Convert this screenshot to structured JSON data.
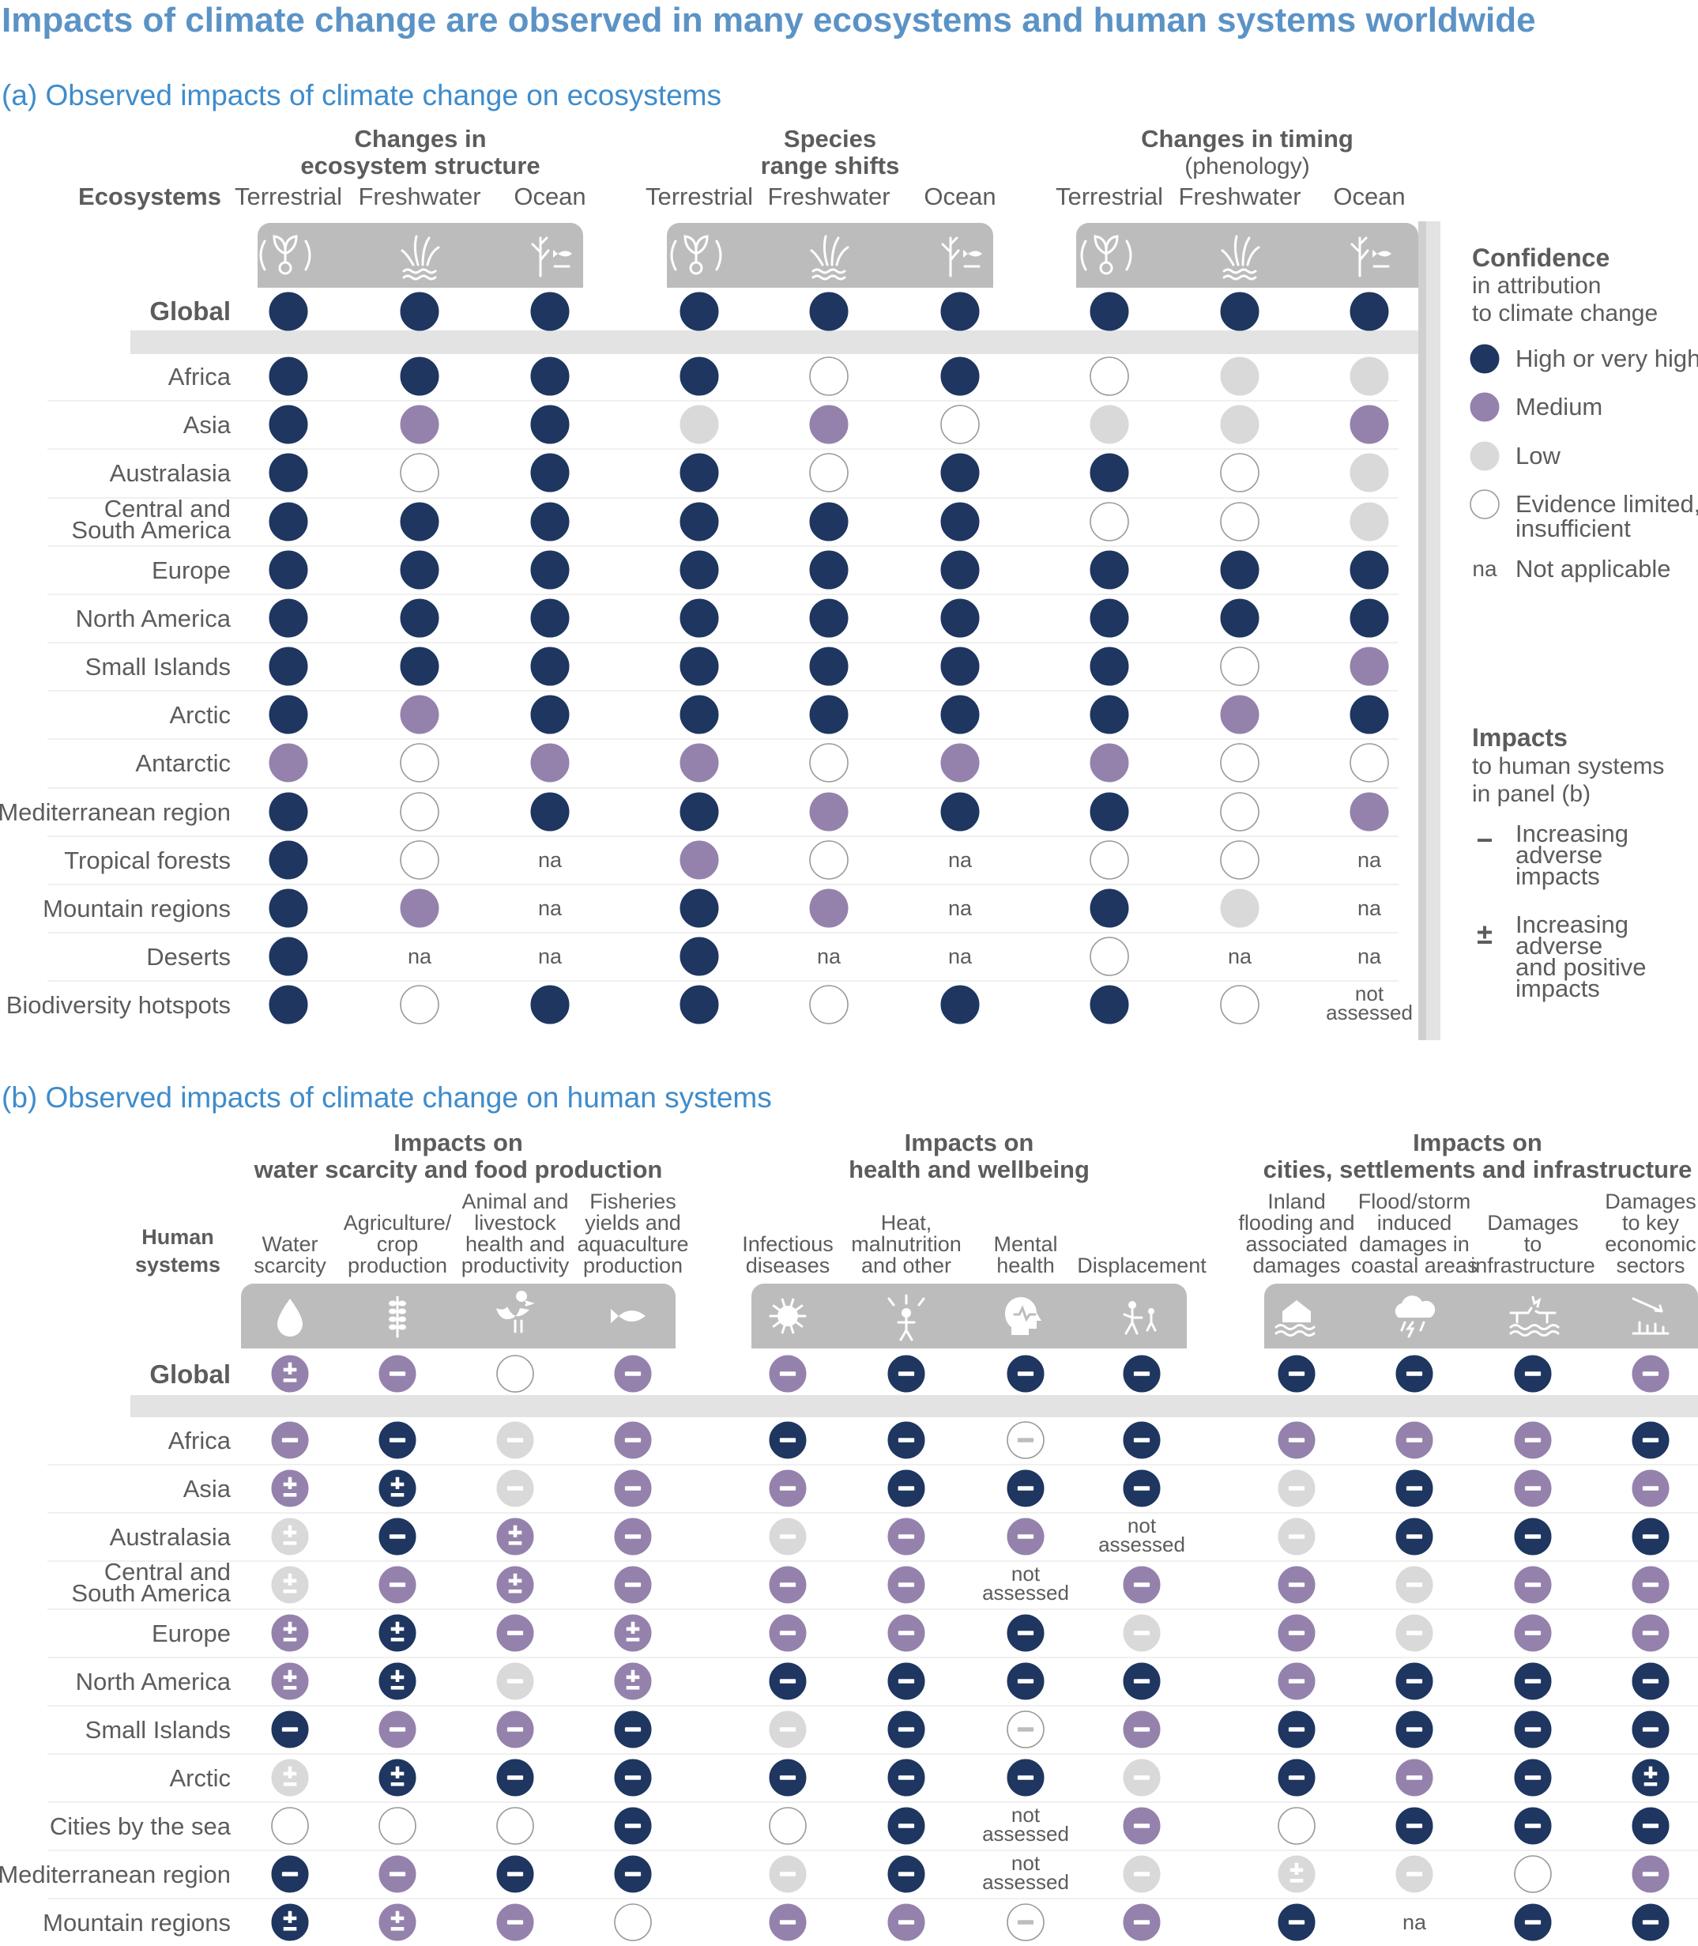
{
  "chart_data": {
    "type": "table",
    "title": "Impacts of climate change are observed in many ecosystems and human systems worldwide",
    "colors": {
      "high": "#1e3660",
      "medium": "#9482ad",
      "low": "#d9d9d9",
      "limited": "#ffffff",
      "header_band": "#bcbcbc",
      "title": "#5b93c6",
      "panel_title": "#3f8ccb"
    },
    "legend": {
      "confidence": {
        "heading": "Confidence",
        "subheading": [
          "in attribution",
          "to climate change"
        ],
        "items": [
          {
            "level": "high",
            "label": [
              "High or very high"
            ]
          },
          {
            "level": "medium",
            "label": [
              "Medium"
            ]
          },
          {
            "level": "low",
            "label": [
              "Low"
            ]
          },
          {
            "level": "limited",
            "label": [
              "Evidence limited,",
              "insufficient"
            ]
          },
          {
            "level": "na",
            "symbol": "na",
            "label": [
              "Not applicable"
            ]
          }
        ]
      },
      "impacts": {
        "heading": "Impacts",
        "subheading": [
          "to human systems",
          "in panel (b)"
        ],
        "items": [
          {
            "symbol": "−",
            "label": [
              "Increasing",
              "adverse",
              "impacts"
            ]
          },
          {
            "symbol": "±",
            "label": [
              "Increasing",
              "adverse",
              "and positive",
              "impacts"
            ]
          }
        ]
      }
    },
    "panel_a": {
      "title": "(a) Observed impacts of climate change on ecosystems",
      "row_header": "Ecosystems",
      "groups": [
        {
          "label": [
            "Changes in",
            "ecosystem structure"
          ],
          "columns": [
            "Terrestrial",
            "Freshwater",
            "Ocean"
          ],
          "icons": [
            "terrestrial-icon",
            "freshwater-icon",
            "ocean-icon"
          ]
        },
        {
          "label": [
            "Species",
            "range shifts"
          ],
          "columns": [
            "Terrestrial",
            "Freshwater",
            "Ocean"
          ],
          "icons": [
            "terrestrial-icon",
            "freshwater-icon",
            "ocean-icon"
          ]
        },
        {
          "label": [
            "Changes in timing",
            "(phenology)"
          ],
          "columns": [
            "Terrestrial",
            "Freshwater",
            "Ocean"
          ],
          "icons": [
            "terrestrial-icon",
            "freshwater-icon",
            "ocean-icon"
          ]
        }
      ],
      "global": {
        "label": "Global",
        "cells": [
          "H",
          "H",
          "H",
          "H",
          "H",
          "H",
          "H",
          "H",
          "H"
        ]
      },
      "rows": [
        {
          "label": [
            "Africa"
          ],
          "cells": [
            "H",
            "H",
            "H",
            "H",
            "E",
            "H",
            "E",
            "L",
            "L"
          ]
        },
        {
          "label": [
            "Asia"
          ],
          "cells": [
            "H",
            "M",
            "H",
            "L",
            "M",
            "E",
            "L",
            "L",
            "M"
          ]
        },
        {
          "label": [
            "Australasia"
          ],
          "cells": [
            "H",
            "E",
            "H",
            "H",
            "E",
            "H",
            "H",
            "E",
            "L"
          ]
        },
        {
          "label": [
            "Central and",
            "South America"
          ],
          "cells": [
            "H",
            "H",
            "H",
            "H",
            "H",
            "H",
            "E",
            "E",
            "L"
          ]
        },
        {
          "label": [
            "Europe"
          ],
          "cells": [
            "H",
            "H",
            "H",
            "H",
            "H",
            "H",
            "H",
            "H",
            "H"
          ]
        },
        {
          "label": [
            "North America"
          ],
          "cells": [
            "H",
            "H",
            "H",
            "H",
            "H",
            "H",
            "H",
            "H",
            "H"
          ]
        },
        {
          "label": [
            "Small Islands"
          ],
          "cells": [
            "H",
            "H",
            "H",
            "H",
            "H",
            "H",
            "H",
            "E",
            "M"
          ]
        },
        {
          "label": [
            "Arctic"
          ],
          "cells": [
            "H",
            "M",
            "H",
            "H",
            "H",
            "H",
            "H",
            "M",
            "H"
          ]
        },
        {
          "label": [
            "Antarctic"
          ],
          "cells": [
            "M",
            "E",
            "M",
            "M",
            "E",
            "M",
            "M",
            "E",
            "E"
          ]
        },
        {
          "label": [
            "Mediterranean region"
          ],
          "cells": [
            "H",
            "E",
            "H",
            "H",
            "M",
            "H",
            "H",
            "E",
            "M"
          ]
        },
        {
          "label": [
            "Tropical forests"
          ],
          "cells": [
            "H",
            "E",
            "na",
            "M",
            "E",
            "na",
            "E",
            "E",
            "na"
          ]
        },
        {
          "label": [
            "Mountain regions"
          ],
          "cells": [
            "H",
            "M",
            "na",
            "H",
            "M",
            "na",
            "H",
            "L",
            "na"
          ]
        },
        {
          "label": [
            "Deserts"
          ],
          "cells": [
            "H",
            "na",
            "na",
            "H",
            "na",
            "na",
            "E",
            "na",
            "na"
          ]
        },
        {
          "label": [
            "Biodiversity hotspots"
          ],
          "cells": [
            "H",
            "E",
            "H",
            "H",
            "E",
            "H",
            "H",
            "E",
            "NA"
          ]
        }
      ]
    },
    "panel_b": {
      "title": "(b) Observed impacts of climate change on human systems",
      "row_header": [
        "Human",
        "systems"
      ],
      "groups": [
        {
          "label": [
            "Impacts on",
            "water scarcity and food production"
          ],
          "columns": [
            [
              "Water",
              "scarcity"
            ],
            [
              "Agriculture/",
              "crop",
              "production"
            ],
            [
              "Animal and",
              "livestock",
              "health and",
              "productivity"
            ],
            [
              "Fisheries",
              "yields and",
              "aquaculture",
              "production"
            ]
          ],
          "icons": [
            "water-drop-icon",
            "wheat-icon",
            "chicken-icon",
            "fish-icon"
          ]
        },
        {
          "label": [
            "Impacts on",
            "health and wellbeing"
          ],
          "columns": [
            [
              "Infectious",
              "diseases"
            ],
            [
              "Heat,",
              "malnutrition",
              "and other"
            ],
            [
              "Mental",
              "health"
            ],
            [
              "Displacement"
            ]
          ],
          "icons": [
            "virus-icon",
            "heat-person-icon",
            "head-heartbeat-icon",
            "displaced-people-icon"
          ]
        },
        {
          "label": [
            "Impacts on",
            "cities, settlements and infrastructure"
          ],
          "columns": [
            [
              "Inland",
              "flooding and",
              "associated",
              "damages"
            ],
            [
              "Flood/storm",
              "induced",
              "damages in",
              "coastal areas"
            ],
            [
              "Damages",
              "to",
              "infrastructure"
            ],
            [
              "Damages",
              "to key",
              "economic",
              "sectors"
            ]
          ],
          "icons": [
            "flooded-house-icon",
            "storm-cloud-icon",
            "damaged-bridge-icon",
            "economic-decline-icon"
          ]
        }
      ],
      "global": {
        "label": "Global",
        "cells": [
          "M±",
          "M−",
          "E",
          "M−",
          "M−",
          "H−",
          "H−",
          "H−",
          "H−",
          "H−",
          "H−",
          "M−"
        ]
      },
      "rows": [
        {
          "label": [
            "Africa"
          ],
          "cells": [
            "M−",
            "H−",
            "L−",
            "M−",
            "H−",
            "H−",
            "E−",
            "H−",
            "M−",
            "M−",
            "M−",
            "H−"
          ]
        },
        {
          "label": [
            "Asia"
          ],
          "cells": [
            "M±",
            "H±",
            "L−",
            "M−",
            "M−",
            "H−",
            "H−",
            "H−",
            "L−",
            "H−",
            "M−",
            "M−"
          ]
        },
        {
          "label": [
            "Australasia"
          ],
          "cells": [
            "L±",
            "H−",
            "M±",
            "M−",
            "L−",
            "M−",
            "M−",
            "NA",
            "L−",
            "H−",
            "H−",
            "H−"
          ]
        },
        {
          "label": [
            "Central and",
            "South America"
          ],
          "cells": [
            "L±",
            "M−",
            "M±",
            "M−",
            "M−",
            "M−",
            "NA",
            "M−",
            "M−",
            "L−",
            "M−",
            "M−"
          ]
        },
        {
          "label": [
            "Europe"
          ],
          "cells": [
            "M±",
            "H±",
            "M−",
            "M±",
            "M−",
            "M−",
            "H−",
            "L−",
            "M−",
            "L−",
            "M−",
            "M−"
          ]
        },
        {
          "label": [
            "North America"
          ],
          "cells": [
            "M±",
            "H±",
            "L−",
            "M±",
            "H−",
            "H−",
            "H−",
            "H−",
            "M−",
            "H−",
            "H−",
            "H−"
          ]
        },
        {
          "label": [
            "Small Islands"
          ],
          "cells": [
            "H−",
            "M−",
            "M−",
            "H−",
            "L−",
            "H−",
            "E−",
            "M−",
            "H−",
            "H−",
            "H−",
            "H−"
          ]
        },
        {
          "label": [
            "Arctic"
          ],
          "cells": [
            "L±",
            "H±",
            "H−",
            "H−",
            "H−",
            "H−",
            "H−",
            "L−",
            "H−",
            "M−",
            "H−",
            "H±"
          ]
        },
        {
          "label": [
            "Cities by the sea"
          ],
          "cells": [
            "E",
            "E",
            "E",
            "H−",
            "E",
            "H−",
            "NA",
            "M−",
            "E",
            "H−",
            "H−",
            "H−"
          ]
        },
        {
          "label": [
            "Mediterranean region"
          ],
          "cells": [
            "H−",
            "M−",
            "H−",
            "H−",
            "L−",
            "H−",
            "NA",
            "L−",
            "L±",
            "L−",
            "E",
            "M−"
          ]
        },
        {
          "label": [
            "Mountain regions"
          ],
          "cells": [
            "H±",
            "M±",
            "M−",
            "E",
            "M−",
            "M−",
            "E−",
            "M−",
            "H−",
            "na",
            "H−",
            "H−"
          ]
        }
      ]
    },
    "cell_text": {
      "na": "na",
      "not_assessed": [
        "not",
        "assessed"
      ]
    }
  }
}
